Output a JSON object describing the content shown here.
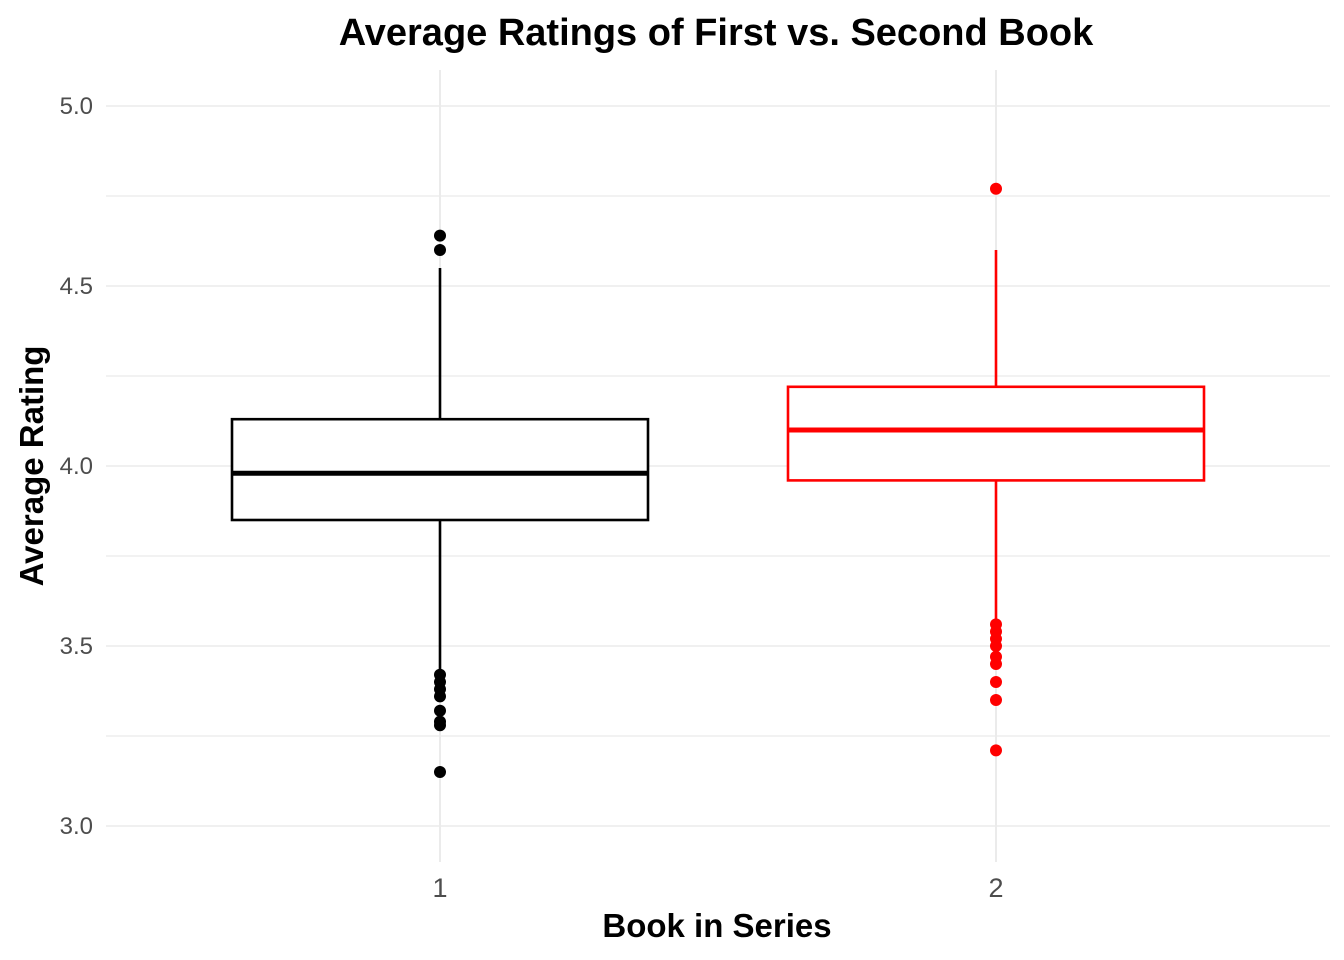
{
  "chart_data": {
    "type": "boxplot",
    "title": "Average Ratings of First vs. Second Book",
    "xlabel": "Book in Series",
    "ylabel": "Average Rating",
    "ylim": [
      2.95,
      5.05
    ],
    "yticks": [
      3.0,
      3.5,
      4.0,
      4.5,
      5.0
    ],
    "ytick_labels": [
      "3.0",
      "3.5",
      "4.0",
      "4.5",
      "5.0"
    ],
    "categories": [
      "1",
      "2"
    ],
    "grid": true,
    "series": [
      {
        "category": "1",
        "color": "#000000",
        "q1": 3.85,
        "median": 3.98,
        "q3": 4.13,
        "whisker_low": 3.43,
        "whisker_high": 4.55,
        "outliers": [
          4.64,
          4.6,
          3.42,
          3.4,
          3.38,
          3.36,
          3.32,
          3.29,
          3.28,
          3.15
        ]
      },
      {
        "category": "2",
        "color": "#ff0000",
        "q1": 3.96,
        "median": 4.1,
        "q3": 4.22,
        "whisker_low": 3.57,
        "whisker_high": 4.6,
        "outliers": [
          4.77,
          3.56,
          3.54,
          3.52,
          3.5,
          3.47,
          3.45,
          3.4,
          3.35,
          3.21
        ]
      }
    ]
  }
}
